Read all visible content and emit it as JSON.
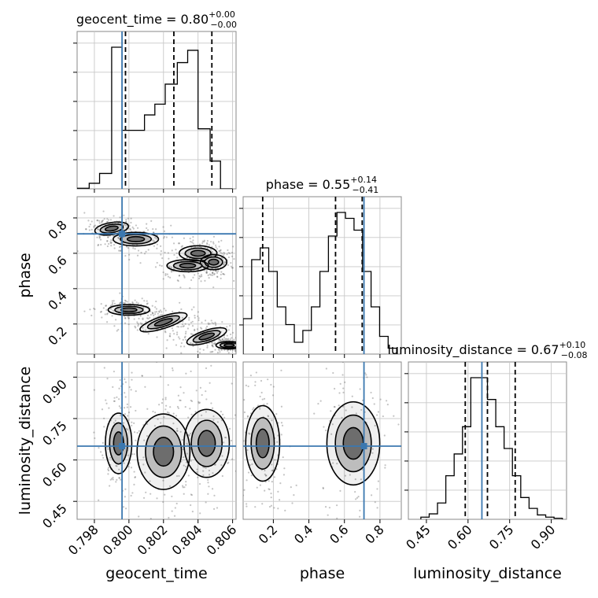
{
  "chart_data": {
    "type": "corner",
    "parameters": [
      "geocent_time",
      "phase",
      "luminosity_distance"
    ],
    "axis_labels": {
      "geocent_time": "geocent_time",
      "phase": "phase",
      "luminosity_distance": "luminosity_distance"
    },
    "truths": {
      "geocent_time": 0.7996,
      "phase": 0.71,
      "luminosity_distance": 0.65
    },
    "ranges": {
      "geocent_time": [
        0.797,
        0.8062
      ],
      "phase": [
        0.03,
        0.92
      ],
      "luminosity_distance": [
        0.385,
        0.955
      ]
    },
    "grid": true,
    "marginals": [
      {
        "parameter": "geocent_time",
        "title": {
          "prefix": "geocent_time = ",
          "median": "0.80",
          "upper": "+0.00",
          "lower": "−0.00"
        },
        "quantiles": [
          0.7998,
          0.8026,
          0.8048
        ],
        "bin_edges": [
          0.797,
          0.7977,
          0.7983,
          0.799,
          0.7996,
          0.8002,
          0.8009,
          0.8015,
          0.8021,
          0.8028,
          0.8034,
          0.804,
          0.8047,
          0.8053,
          0.806
        ],
        "counts": [
          2,
          18,
          50,
          460,
          190,
          190,
          240,
          275,
          340,
          410,
          450,
          195,
          90,
          0
        ]
      },
      {
        "parameter": "phase",
        "title": {
          "prefix": "phase = ",
          "median": "0.55",
          "upper": "+0.14",
          "lower": "−0.41"
        },
        "quantiles": [
          0.14,
          0.55,
          0.7
        ],
        "bin_edges": [
          0.03,
          0.078,
          0.126,
          0.174,
          0.222,
          0.27,
          0.318,
          0.366,
          0.414,
          0.462,
          0.51,
          0.558,
          0.606,
          0.654,
          0.702,
          0.75,
          0.798,
          0.846,
          0.894
        ],
        "counts": [
          30,
          80,
          90,
          70,
          40,
          25,
          10,
          20,
          40,
          70,
          100,
          120,
          115,
          105,
          70,
          40,
          15,
          5
        ]
      },
      {
        "parameter": "luminosity_distance",
        "title": {
          "prefix": "luminosity_distance = ",
          "median": "0.67",
          "upper": "+0.10",
          "lower": "−0.08"
        },
        "quantiles": [
          0.59,
          0.67,
          0.77
        ],
        "bin_edges": [
          0.43,
          0.46,
          0.49,
          0.52,
          0.55,
          0.58,
          0.61,
          0.64,
          0.67,
          0.7,
          0.73,
          0.76,
          0.79,
          0.82,
          0.85,
          0.88,
          0.91,
          0.94
        ],
        "counts": [
          2,
          5,
          15,
          40,
          60,
          85,
          130,
          130,
          110,
          85,
          65,
          40,
          20,
          10,
          4,
          2,
          1
        ]
      }
    ],
    "contour_panels": [
      {
        "x": "geocent_time",
        "y": "phase",
        "modes": [
          {
            "x": 0.799,
            "y": 0.74,
            "w": 0.45,
            "h": 0.08,
            "tilt": -0.05
          },
          {
            "x": 0.8004,
            "y": 0.68,
            "w": 0.6,
            "h": 0.09,
            "tilt": 0
          },
          {
            "x": 0.804,
            "y": 0.6,
            "w": 0.5,
            "h": 0.1,
            "tilt": 0
          },
          {
            "x": 0.8049,
            "y": 0.55,
            "w": 0.35,
            "h": 0.1,
            "tilt": 0
          },
          {
            "x": 0.8034,
            "y": 0.53,
            "w": 0.55,
            "h": 0.08,
            "tilt": 0
          },
          {
            "x": 0.8,
            "y": 0.28,
            "w": 0.55,
            "h": 0.07,
            "tilt": 0
          },
          {
            "x": 0.802,
            "y": 0.21,
            "w": 0.65,
            "h": 0.08,
            "tilt": -0.1
          },
          {
            "x": 0.8045,
            "y": 0.13,
            "w": 0.55,
            "h": 0.08,
            "tilt": -0.1
          },
          {
            "x": 0.8058,
            "y": 0.08,
            "w": 0.35,
            "h": 0.05,
            "tilt": 0
          }
        ]
      },
      {
        "x": "geocent_time",
        "y": "luminosity_distance",
        "modes": [
          {
            "x": 0.7994,
            "y": 0.66,
            "w": 0.35,
            "h": 0.4,
            "tilt": 0
          },
          {
            "x": 0.802,
            "y": 0.63,
            "w": 0.7,
            "h": 0.5,
            "tilt": 0
          },
          {
            "x": 0.8045,
            "y": 0.66,
            "w": 0.6,
            "h": 0.45,
            "tilt": 0
          }
        ]
      },
      {
        "x": "phase",
        "y": "luminosity_distance",
        "modes": [
          {
            "x": 0.14,
            "y": 0.66,
            "w": 0.45,
            "h": 0.5,
            "tilt": 0
          },
          {
            "x": 0.65,
            "y": 0.66,
            "w": 0.7,
            "h": 0.55,
            "tilt": 0
          }
        ]
      }
    ],
    "tick_labels": {
      "geocent_time": [
        "0.798",
        "0.800",
        "0.802",
        "0.804",
        "0.806"
      ],
      "phase": [
        "0.2",
        "0.4",
        "0.6",
        "0.8"
      ],
      "luminosity_distance": [
        "0.45",
        "0.60",
        "0.75",
        "0.90"
      ]
    },
    "colors": {
      "truth": "#3b78b0",
      "hist": "#000000",
      "points": "#555555"
    }
  }
}
